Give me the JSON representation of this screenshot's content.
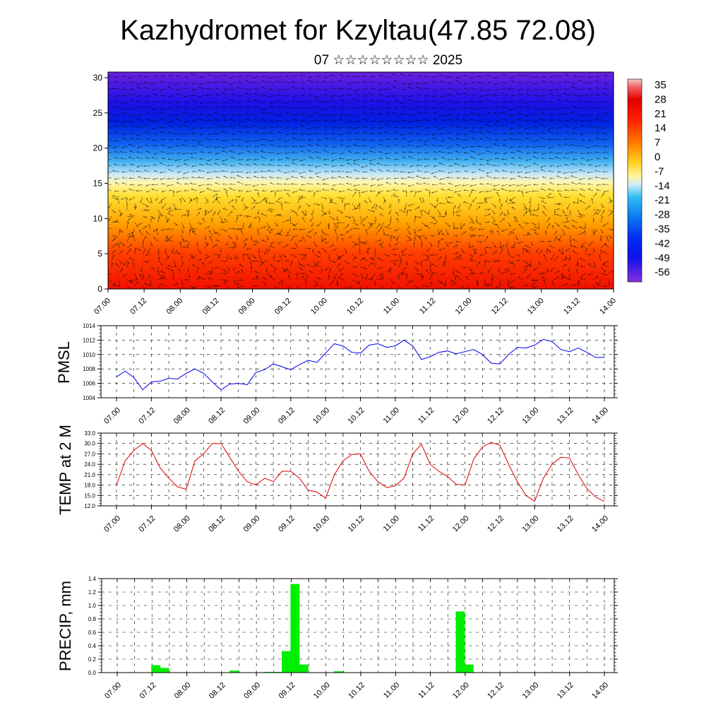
{
  "title": "Kazhydromet for Kzyltau(47.85 72.08)",
  "subtitle": "07 ☆☆☆☆☆☆☆☆ 2025",
  "x_ticks": [
    "07.00",
    "07.12",
    "08.00",
    "08.12",
    "09.00",
    "09.12",
    "10.00",
    "10.12",
    "11.00",
    "11.12",
    "12.00",
    "12.12",
    "13.00",
    "13.12",
    "14.00"
  ],
  "chart_data": [
    {
      "type": "heatmap",
      "y_ticks": [
        "0",
        "5",
        "10",
        "15",
        "20",
        "25",
        "30"
      ],
      "ylim": [
        0,
        30.8
      ],
      "colorbar": {
        "ticks": [
          "35",
          "28",
          "21",
          "14",
          "7",
          "0",
          "-7",
          "-14",
          "-21",
          "-28",
          "-35",
          "-42",
          "-49",
          "-56"
        ],
        "range": [
          -63,
          42
        ]
      },
      "note": "temperature cross-section with wind vectors"
    },
    {
      "type": "line",
      "ylabel": "PMSL",
      "ylim": [
        1004,
        1014
      ],
      "y_ticks": [
        "1014",
        "1012",
        "1010",
        "1008",
        "1006",
        "1004"
      ],
      "color": "#0000ee",
      "values": [
        1006.9,
        1007.7,
        1006.8,
        1005.1,
        1006.2,
        1006.3,
        1006.7,
        1006.6,
        1007.4,
        1008.0,
        1007.4,
        1006.2,
        1005.1,
        1005.9,
        1006.0,
        1005.8,
        1007.5,
        1007.9,
        1008.7,
        1008.3,
        1007.9,
        1008.6,
        1009.2,
        1008.9,
        1010.2,
        1011.5,
        1011.2,
        1010.3,
        1010.2,
        1011.3,
        1011.5,
        1011.0,
        1011.2,
        1012.0,
        1011.2,
        1009.3,
        1009.7,
        1010.3,
        1010.5,
        1010.1,
        1010.4,
        1010.7,
        1010.0,
        1008.8,
        1008.7,
        1010.0,
        1011.0,
        1010.9,
        1011.3,
        1012.1,
        1011.8,
        1010.7,
        1010.4,
        1010.9,
        1010.3,
        1009.6,
        1009.6
      ]
    },
    {
      "type": "line",
      "ylabel": "TEMP at 2 M",
      "ylim": [
        12.0,
        33.0
      ],
      "y_ticks": [
        "33.0",
        "30.0",
        "27.0",
        "24.0",
        "21.0",
        "18.0",
        "15.0",
        "12.0"
      ],
      "color": "#e00000",
      "values": [
        18.0,
        25.0,
        28.0,
        30.0,
        28.0,
        23.0,
        20.0,
        17.5,
        16.8,
        25.0,
        27.0,
        30.0,
        30.0,
        26.0,
        22.0,
        19.0,
        18.0,
        20.0,
        19.0,
        22.0,
        22.0,
        20.0,
        16.5,
        16.0,
        14.2,
        21.0,
        25.0,
        26.8,
        27.0,
        22.0,
        19.0,
        17.3,
        17.8,
        20.0,
        27.0,
        29.8,
        24.0,
        22.0,
        20.5,
        18.2,
        18.0,
        25.5,
        29.0,
        30.3,
        29.5,
        24.0,
        19.0,
        15.0,
        13.3,
        20.0,
        24.0,
        26.0,
        25.8,
        21.0,
        17.0,
        14.5,
        13.3
      ]
    },
    {
      "type": "bar",
      "ylabel": "PRECIP, mm",
      "ylim": [
        0,
        1.4
      ],
      "y_ticks": [
        "1.4",
        "1.2",
        "1.0",
        "0.8",
        "0.6",
        "0.4",
        "0.2",
        "0.0"
      ],
      "color": "#00ee00",
      "values": [
        0,
        0,
        0,
        0,
        0.11,
        0.07,
        0,
        0,
        0,
        0,
        0,
        0,
        0,
        0.03,
        0,
        0,
        0,
        0.01,
        0.01,
        0.32,
        1.32,
        0.12,
        0,
        0,
        0,
        0.02,
        0,
        0,
        0,
        0,
        0,
        0,
        0,
        0,
        0,
        0,
        0,
        0,
        0,
        0.91,
        0.12,
        0,
        0,
        0,
        0,
        0,
        0,
        0,
        0,
        0,
        0,
        0,
        0,
        0,
        0,
        0
      ]
    }
  ]
}
